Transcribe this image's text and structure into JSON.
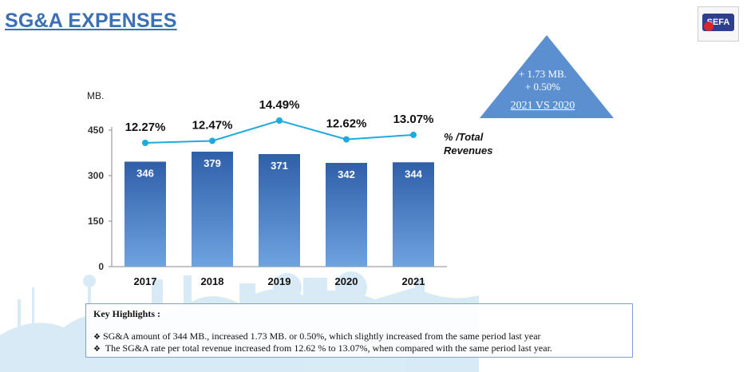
{
  "header": {
    "title": "SG&A EXPENSES",
    "logo_text": "SEFA"
  },
  "callout": {
    "line1": "+ 1.73 MB.",
    "line2": "+ 0.50%",
    "line3": "2021 VS 2020"
  },
  "chart_data": {
    "type": "bar",
    "categories": [
      "2017",
      "2018",
      "2019",
      "2020",
      "2021"
    ],
    "values": [
      346,
      379,
      371,
      342,
      344
    ],
    "value_labels": [
      "346",
      "379",
      "371",
      "342",
      "344"
    ],
    "ylabel": "MB.",
    "ylim": [
      0,
      450
    ],
    "yticks": [
      "0",
      "150",
      "300",
      "450"
    ],
    "bar_color": "#3a6fc0",
    "line_series": {
      "name": "% /Total Revenues",
      "name_line1": "% /Total",
      "name_line2": "Revenues",
      "values": [
        12.27,
        12.47,
        14.49,
        12.62,
        13.07
      ],
      "labels": [
        "12.27%",
        "12.47%",
        "14.49%",
        "12.62%",
        "13.07%"
      ],
      "color": "#1ea9e1"
    }
  },
  "highlights": {
    "title": "Key Highlights :",
    "items": [
      "SG&A amount of 344 MB., increased  1.73 MB. or 0.50%, which slightly increased from the same period last year",
      " The SG&A rate per total revenue increased from 12.62 % to 13.07%, when compared with the same period last year."
    ]
  }
}
